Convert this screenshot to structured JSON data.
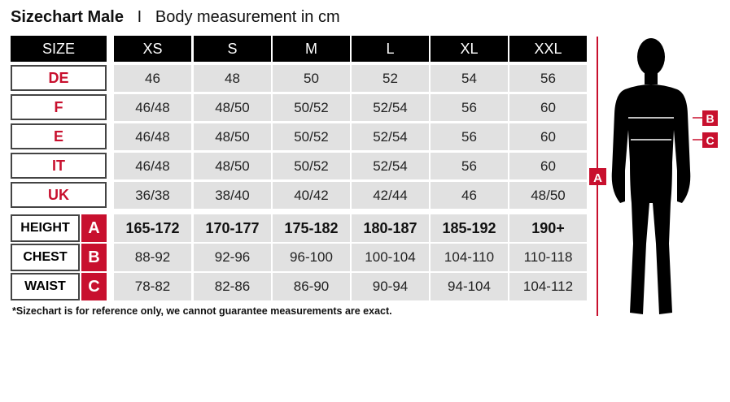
{
  "title": {
    "bold": "Sizechart Male",
    "separator": "I",
    "subtitle": "Body measurement in cm"
  },
  "header": {
    "label": "SIZE",
    "sizes": [
      "XS",
      "S",
      "M",
      "L",
      "XL",
      "XXL"
    ]
  },
  "size_rows": [
    {
      "label": "DE",
      "values": [
        "46",
        "48",
        "50",
        "52",
        "54",
        "56"
      ]
    },
    {
      "label": "F",
      "values": [
        "46/48",
        "48/50",
        "50/52",
        "52/54",
        "56",
        "60"
      ]
    },
    {
      "label": "E",
      "values": [
        "46/48",
        "48/50",
        "50/52",
        "52/54",
        "56",
        "60"
      ]
    },
    {
      "label": "IT",
      "values": [
        "46/48",
        "48/50",
        "50/52",
        "52/54",
        "56",
        "60"
      ]
    },
    {
      "label": "UK",
      "values": [
        "36/38",
        "38/40",
        "40/42",
        "42/44",
        "46",
        "48/50"
      ]
    }
  ],
  "measure_rows": [
    {
      "label": "HEIGHT",
      "badge": "A",
      "values": [
        "165-172",
        "170-177",
        "175-182",
        "180-187",
        "185-192",
        "190+"
      ]
    },
    {
      "label": "CHEST",
      "badge": "B",
      "values": [
        "88-92",
        "92-96",
        "96-100",
        "100-104",
        "104-110",
        "110-118"
      ]
    },
    {
      "label": "WAIST",
      "badge": "C",
      "values": [
        "78-82",
        "82-86",
        "86-90",
        "90-94",
        "94-104",
        "104-112"
      ]
    }
  ],
  "footnote": "*Sizechart is for reference only, we cannot guarantee measurements are exact.",
  "figure": {
    "height_marker": "A",
    "chest_marker": "B",
    "waist_marker": "C"
  },
  "colors": {
    "accent": "#c8102e",
    "header_bg": "#000000",
    "cell_bg": "#e1e1e1"
  }
}
